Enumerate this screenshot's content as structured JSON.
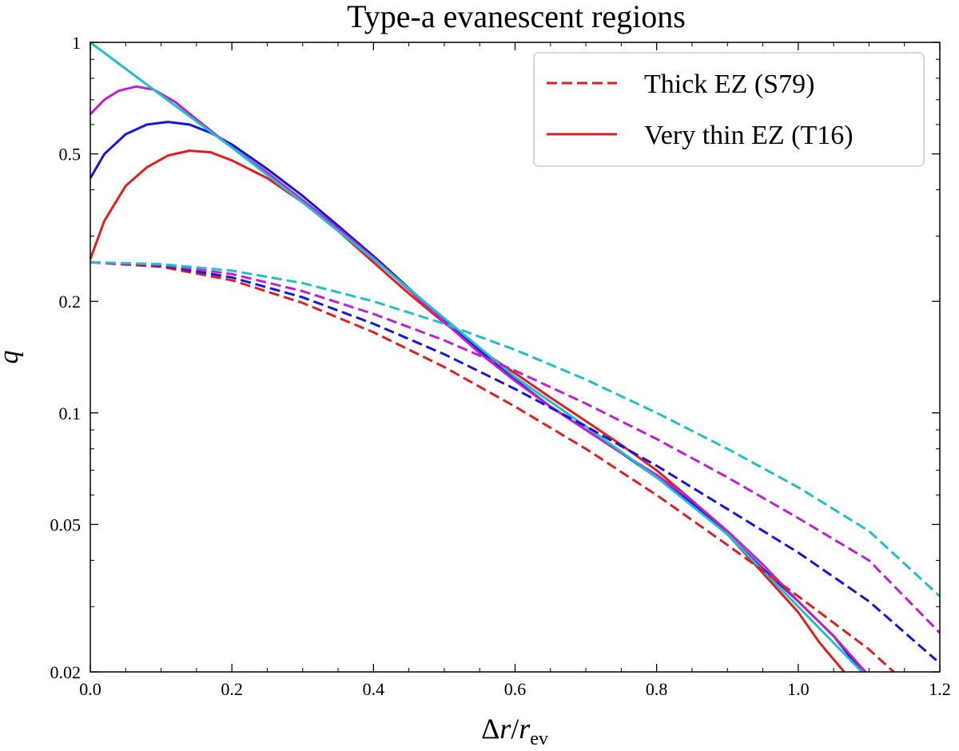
{
  "chart_data": {
    "type": "line",
    "title": "Type-a evanescent regions",
    "xlabel": {
      "delta": "Δ",
      "r": "r",
      "slash": "/",
      "rbase": "r",
      "sub": "ev"
    },
    "ylabel": "q",
    "xlim": [
      0.0,
      1.2
    ],
    "ylim": [
      0.02,
      1.0
    ],
    "yscale": "log",
    "xticks": [
      0.0,
      0.2,
      0.4,
      0.6,
      0.8,
      1.0,
      1.2
    ],
    "xtick_labels": [
      "0.0",
      "0.2",
      "0.4",
      "0.6",
      "0.8",
      "1.0",
      "1.2"
    ],
    "yticks": [
      1,
      0.5,
      0.2,
      0.1,
      0.05,
      0.02
    ],
    "ytick_labels": [
      "1",
      "0.5",
      "0.2",
      "0.1",
      "0.05",
      "0.02"
    ],
    "yminor_ticks": [
      0.03,
      0.04,
      0.06,
      0.07,
      0.08,
      0.09,
      0.3,
      0.4,
      0.6,
      0.7,
      0.8,
      0.9
    ],
    "legend": {
      "location": "top-right",
      "entries": [
        {
          "label": "Thick EZ (S79)",
          "style": "dashed",
          "color": "#d62020"
        },
        {
          "label": "Very thin EZ (T16)",
          "style": "solid",
          "color": "#d62020"
        }
      ]
    },
    "colors": {
      "red": "#e02020",
      "blue": "#1515e0",
      "magenta": "#c020d0",
      "cyan": "#20c0c8"
    },
    "series": [
      {
        "name": "red thin",
        "style": "solid",
        "color": "#e02020",
        "x": [
          0.0,
          0.02,
          0.05,
          0.08,
          0.11,
          0.14,
          0.17,
          0.2,
          0.25,
          0.3,
          0.35,
          0.4,
          0.45,
          0.5,
          0.55,
          0.6,
          0.65,
          0.7,
          0.75,
          0.8,
          0.85,
          0.9,
          0.95,
          1.0,
          1.03,
          1.065
        ],
        "y": [
          0.26,
          0.33,
          0.41,
          0.46,
          0.495,
          0.51,
          0.505,
          0.48,
          0.43,
          0.37,
          0.31,
          0.255,
          0.21,
          0.175,
          0.148,
          0.128,
          0.11,
          0.095,
          0.082,
          0.07,
          0.058,
          0.047,
          0.037,
          0.029,
          0.024,
          0.02
        ]
      },
      {
        "name": "blue thin",
        "style": "solid",
        "color": "#1515e0",
        "x": [
          0.0,
          0.02,
          0.05,
          0.08,
          0.11,
          0.14,
          0.17,
          0.2,
          0.25,
          0.3,
          0.35,
          0.4,
          0.45,
          0.5,
          0.55,
          0.6,
          0.65,
          0.7,
          0.75,
          0.8,
          0.85,
          0.9,
          0.95,
          1.0,
          1.05,
          1.09
        ],
        "y": [
          0.43,
          0.5,
          0.565,
          0.6,
          0.61,
          0.6,
          0.57,
          0.53,
          0.455,
          0.385,
          0.32,
          0.265,
          0.217,
          0.178,
          0.147,
          0.123,
          0.104,
          0.09,
          0.078,
          0.067,
          0.057,
          0.047,
          0.038,
          0.031,
          0.025,
          0.02
        ]
      },
      {
        "name": "magenta thin",
        "style": "solid",
        "color": "#c020d0",
        "x": [
          0.0,
          0.02,
          0.04,
          0.065,
          0.09,
          0.12,
          0.15,
          0.2,
          0.25,
          0.3,
          0.35,
          0.4,
          0.45,
          0.5,
          0.55,
          0.6,
          0.65,
          0.7,
          0.75,
          0.8,
          0.85,
          0.9,
          0.95,
          1.0,
          1.05,
          1.095
        ],
        "y": [
          0.64,
          0.7,
          0.74,
          0.76,
          0.745,
          0.69,
          0.62,
          0.52,
          0.445,
          0.375,
          0.315,
          0.262,
          0.215,
          0.176,
          0.145,
          0.122,
          0.104,
          0.09,
          0.078,
          0.068,
          0.058,
          0.048,
          0.039,
          0.031,
          0.025,
          0.02
        ]
      },
      {
        "name": "cyan thin",
        "style": "solid",
        "color": "#20c0c8",
        "x": [
          0.0,
          0.1,
          0.2,
          0.3,
          0.4,
          0.5,
          0.6,
          0.7,
          0.8,
          0.9,
          1.0,
          1.09
        ],
        "y": [
          1.0,
          0.72,
          0.52,
          0.37,
          0.26,
          0.18,
          0.125,
          0.092,
          0.067,
          0.047,
          0.03,
          0.02
        ]
      },
      {
        "name": "red thick",
        "style": "dashed",
        "color": "#e02020",
        "x": [
          0.0,
          0.1,
          0.2,
          0.3,
          0.4,
          0.5,
          0.6,
          0.7,
          0.8,
          0.9,
          1.0,
          1.1,
          1.135
        ],
        "y": [
          0.255,
          0.248,
          0.228,
          0.198,
          0.165,
          0.133,
          0.104,
          0.08,
          0.06,
          0.044,
          0.032,
          0.023,
          0.02
        ]
      },
      {
        "name": "blue thick",
        "style": "dashed",
        "color": "#1515e0",
        "x": [
          0.0,
          0.1,
          0.2,
          0.3,
          0.4,
          0.5,
          0.6,
          0.7,
          0.8,
          0.9,
          1.0,
          1.1,
          1.195
        ],
        "y": [
          0.255,
          0.25,
          0.232,
          0.205,
          0.174,
          0.144,
          0.116,
          0.092,
          0.072,
          0.055,
          0.042,
          0.031,
          0.0215
        ]
      },
      {
        "name": "magenta thick",
        "style": "dashed",
        "color": "#c020d0",
        "x": [
          0.0,
          0.1,
          0.2,
          0.3,
          0.4,
          0.5,
          0.6,
          0.7,
          0.8,
          0.9,
          1.0,
          1.1,
          1.2
        ],
        "y": [
          0.255,
          0.251,
          0.237,
          0.213,
          0.185,
          0.157,
          0.13,
          0.106,
          0.085,
          0.067,
          0.052,
          0.04,
          0.0255
        ]
      },
      {
        "name": "cyan thick",
        "style": "dashed",
        "color": "#20c0c8",
        "x": [
          0.0,
          0.1,
          0.2,
          0.3,
          0.4,
          0.5,
          0.6,
          0.7,
          0.8,
          0.9,
          1.0,
          1.1,
          1.2
        ],
        "y": [
          0.255,
          0.252,
          0.242,
          0.224,
          0.2,
          0.174,
          0.148,
          0.123,
          0.1,
          0.08,
          0.063,
          0.048,
          0.032
        ]
      }
    ]
  }
}
